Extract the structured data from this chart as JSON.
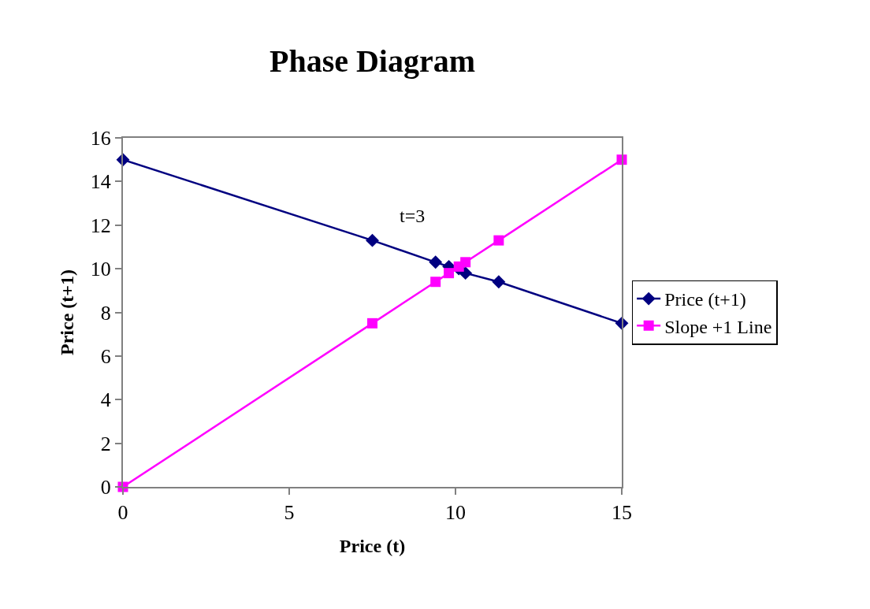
{
  "chart_data": {
    "type": "line",
    "title": "Phase Diagram",
    "xlabel": "Price (t)",
    "ylabel": "Price (t+1)",
    "x": [
      0,
      7.5,
      9.4,
      9.8,
      10.1,
      10.3,
      11.3,
      15
    ],
    "series": [
      {
        "name": "Price (t+1)",
        "color": "#000080",
        "marker": "diamond",
        "values": [
          15,
          11.3,
          10.3,
          10.1,
          10.0,
          9.8,
          9.4,
          7.5
        ]
      },
      {
        "name": "Slope +1 Line",
        "color": "#ff00ff",
        "marker": "square",
        "values": [
          0,
          7.5,
          9.4,
          9.8,
          10.1,
          10.3,
          11.3,
          15
        ]
      }
    ],
    "annotations": [
      "t=3"
    ],
    "xlim": [
      0,
      15
    ],
    "xticks": [
      0,
      5,
      10,
      15
    ],
    "ylim": [
      0,
      16
    ],
    "yticks": [
      0,
      2,
      4,
      6,
      8,
      10,
      12,
      14,
      16
    ],
    "legend": "right",
    "line_style": "solid"
  }
}
